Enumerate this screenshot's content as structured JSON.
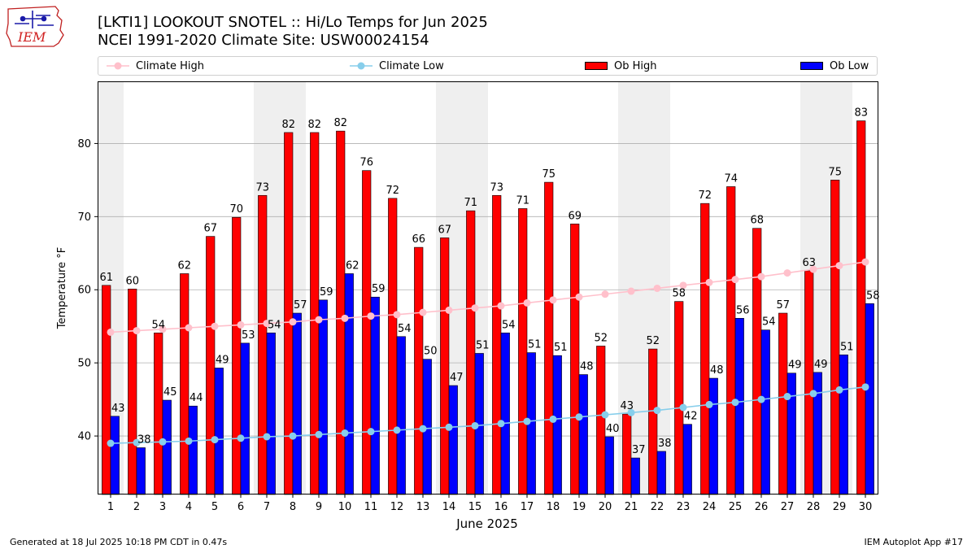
{
  "header": {
    "title_line1": "[LKTI1] LOOKOUT SNOTEL :: Hi/Lo Temps for Jun 2025",
    "title_line2": "NCEI 1991-2020 Climate Site: USW00024154"
  },
  "logo": {
    "text": "IEM"
  },
  "footer": {
    "left": "Generated at 18 Jul 2025 10:18 PM CDT in 0.47s",
    "right": "IEM Autoplot App #17"
  },
  "colors": {
    "climate_high": "#ffc0cb",
    "climate_low": "#87ceeb",
    "ob_high": "#ff0000",
    "ob_low": "#0000ff",
    "weekend_shade": "#efefef",
    "grid": "#b0b0b0"
  },
  "chart_data": {
    "type": "bar",
    "xlabel": "June 2025",
    "ylabel": "Temperature °F",
    "ylim": [
      32,
      88.5
    ],
    "yticks": [
      40,
      50,
      60,
      70,
      80
    ],
    "grid": "horizontal",
    "legend_position": "top",
    "categories": [
      "1",
      "2",
      "3",
      "4",
      "5",
      "6",
      "7",
      "8",
      "9",
      "10",
      "11",
      "12",
      "13",
      "14",
      "15",
      "16",
      "17",
      "18",
      "19",
      "20",
      "21",
      "22",
      "23",
      "24",
      "25",
      "26",
      "27",
      "28",
      "29",
      "30"
    ],
    "shaded_days": [
      1,
      7,
      8,
      14,
      15,
      21,
      22,
      28,
      29
    ],
    "series": [
      {
        "name": "Ob High",
        "kind": "bar",
        "values": [
          61,
          60,
          54,
          62,
          67,
          70,
          73,
          82,
          82,
          82,
          76,
          72,
          66,
          67,
          71,
          73,
          71,
          75,
          69,
          52,
          43,
          52,
          58,
          72,
          74,
          68,
          57,
          63,
          75,
          83
        ],
        "plot_values": [
          60.6,
          60.1,
          54.1,
          62.2,
          67.3,
          69.9,
          72.9,
          81.5,
          81.5,
          81.7,
          76.3,
          72.5,
          65.8,
          67.1,
          70.8,
          72.9,
          71.1,
          74.7,
          69.0,
          52.3,
          43.0,
          51.9,
          58.4,
          71.8,
          74.1,
          68.4,
          56.8,
          62.6,
          75.0,
          83.1
        ]
      },
      {
        "name": "Ob Low",
        "kind": "bar",
        "values": [
          43,
          38,
          45,
          44,
          49,
          53,
          54,
          57,
          59,
          62,
          59,
          54,
          50,
          47,
          51,
          54,
          51,
          51,
          48,
          40,
          37,
          38,
          42,
          48,
          56,
          54,
          49,
          49,
          51,
          58
        ],
        "plot_values": [
          42.7,
          38.4,
          44.9,
          44.1,
          49.3,
          52.7,
          54.1,
          56.8,
          58.6,
          62.2,
          59.0,
          53.6,
          50.5,
          46.9,
          51.3,
          54.1,
          51.4,
          51.0,
          48.4,
          39.9,
          37.0,
          37.9,
          41.6,
          47.9,
          56.1,
          54.5,
          48.6,
          48.7,
          51.1,
          58.1
        ]
      },
      {
        "name": "Climate High",
        "kind": "line",
        "values": [
          54.2,
          54.4,
          54.6,
          54.8,
          55.0,
          55.2,
          55.4,
          55.6,
          55.9,
          56.1,
          56.4,
          56.6,
          56.9,
          57.2,
          57.5,
          57.8,
          58.2,
          58.6,
          59.0,
          59.4,
          59.8,
          60.2,
          60.6,
          61.0,
          61.4,
          61.8,
          62.3,
          62.8,
          63.3,
          63.8
        ]
      },
      {
        "name": "Climate Low",
        "kind": "line",
        "values": [
          39.0,
          39.1,
          39.2,
          39.3,
          39.5,
          39.7,
          39.9,
          40.0,
          40.2,
          40.4,
          40.6,
          40.8,
          41.0,
          41.2,
          41.4,
          41.7,
          42.0,
          42.3,
          42.6,
          42.9,
          43.2,
          43.5,
          43.9,
          44.3,
          44.6,
          45.0,
          45.4,
          45.8,
          46.3,
          46.7
        ]
      }
    ]
  }
}
